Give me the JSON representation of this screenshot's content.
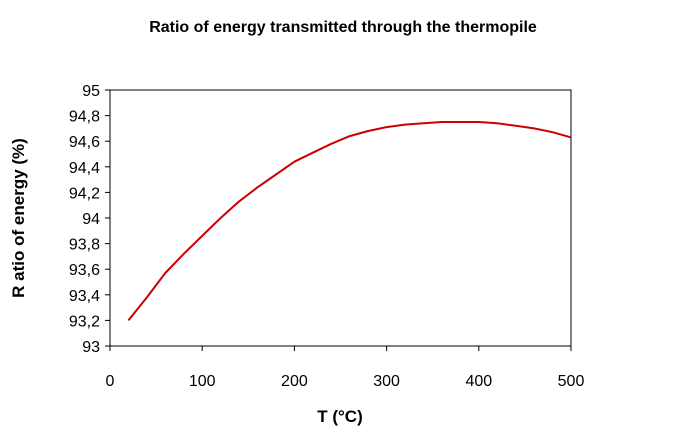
{
  "chart_data": {
    "type": "line",
    "title": "Ratio of energy transmitted through the thermopile",
    "xlabel": "T (°C)",
    "ylabel": "R atio of energy (%)",
    "xlim": [
      0,
      500
    ],
    "ylim": [
      93,
      95
    ],
    "x_ticks": [
      0,
      100,
      200,
      300,
      400,
      500
    ],
    "x_tick_labels": [
      "0",
      "100",
      "200",
      "300",
      "400",
      "500"
    ],
    "y_ticks": [
      93,
      93.2,
      93.4,
      93.6,
      93.8,
      94,
      94.2,
      94.4,
      94.6,
      94.8,
      95
    ],
    "y_tick_labels": [
      "93",
      "93,2",
      "93,4",
      "93,6",
      "93,8",
      "94",
      "94,2",
      "94,4",
      "94,6",
      "94,8",
      "95"
    ],
    "grid": false,
    "series": [
      {
        "color": "#cc0000",
        "x": [
          20,
          40,
          60,
          80,
          100,
          120,
          140,
          160,
          180,
          200,
          220,
          240,
          260,
          280,
          300,
          320,
          340,
          360,
          380,
          400,
          420,
          440,
          460,
          480,
          500
        ],
        "y": [
          93.2,
          93.38,
          93.57,
          93.72,
          93.86,
          94.0,
          94.13,
          94.24,
          94.34,
          94.44,
          94.51,
          94.58,
          94.64,
          94.68,
          94.71,
          94.73,
          94.74,
          94.75,
          94.75,
          94.75,
          94.74,
          94.72,
          94.7,
          94.67,
          94.63
        ]
      }
    ]
  }
}
